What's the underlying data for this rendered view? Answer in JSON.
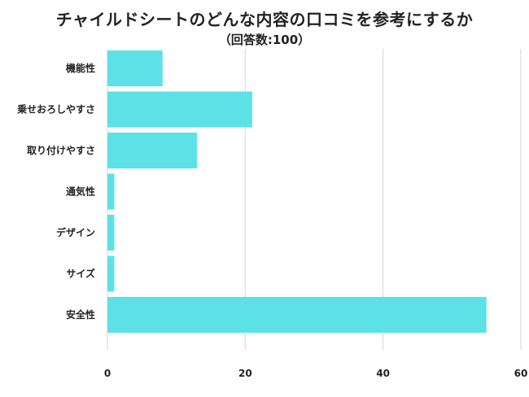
{
  "title": "チャイルドシートのどんな内容の口コミを参考にするか",
  "subtitle": "（回答数:100）",
  "chart_data": {
    "type": "bar",
    "orientation": "horizontal",
    "categories": [
      "機能性",
      "乗せおろしやすさ",
      "取り付けやすさ",
      "通気性",
      "デザイン",
      "サイズ",
      "安全性"
    ],
    "values": [
      8,
      21,
      13,
      1,
      1,
      1,
      55
    ],
    "xlim": [
      0,
      60
    ],
    "xticks": [
      0,
      20,
      40,
      60
    ],
    "grid": true,
    "bar_color": "#5ce1e6"
  }
}
